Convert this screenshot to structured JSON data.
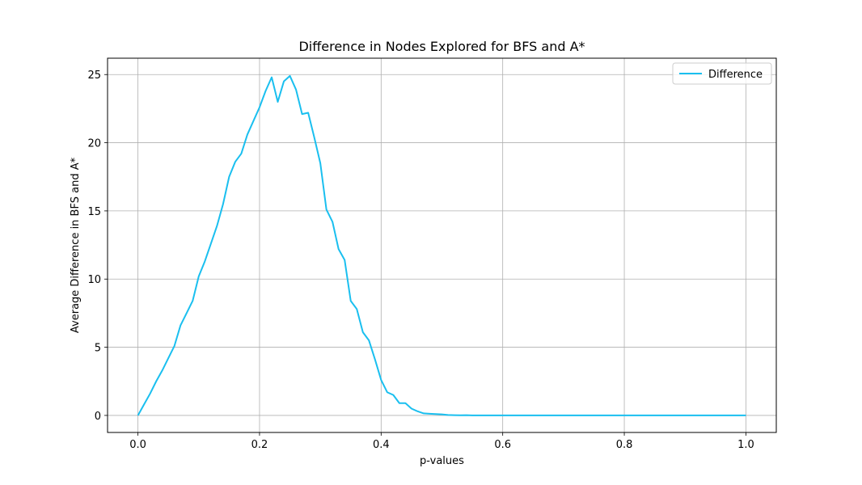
{
  "chart_data": {
    "type": "line",
    "title": "Difference in Nodes Explored for BFS and A*",
    "xlabel": "p-values",
    "ylabel": "Average Difference in BFS and A*",
    "xlim": [
      -0.05,
      1.05
    ],
    "ylim": [
      -1.25,
      26.2
    ],
    "xticks": [
      0.0,
      0.2,
      0.4,
      0.6,
      0.8,
      1.0
    ],
    "xtick_labels": [
      "0.0",
      "0.2",
      "0.4",
      "0.6",
      "0.8",
      "1.0"
    ],
    "yticks": [
      0,
      5,
      10,
      15,
      20,
      25
    ],
    "ytick_labels": [
      "0",
      "5",
      "10",
      "15",
      "20",
      "25"
    ],
    "grid": true,
    "legend_position": "top-right",
    "series": [
      {
        "name": "Difference",
        "color": "#1ABFEF",
        "x": [
          0.0,
          0.01,
          0.02,
          0.03,
          0.04,
          0.05,
          0.06,
          0.07,
          0.08,
          0.09,
          0.1,
          0.11,
          0.12,
          0.13,
          0.14,
          0.15,
          0.16,
          0.17,
          0.18,
          0.19,
          0.2,
          0.21,
          0.22,
          0.23,
          0.24,
          0.25,
          0.26,
          0.27,
          0.28,
          0.29,
          0.3,
          0.31,
          0.32,
          0.33,
          0.34,
          0.35,
          0.36,
          0.37,
          0.38,
          0.39,
          0.4,
          0.41,
          0.42,
          0.43,
          0.44,
          0.45,
          0.46,
          0.47,
          0.48,
          0.49,
          0.5,
          0.51,
          0.52,
          0.53,
          0.54,
          0.55,
          0.6,
          0.65,
          0.7,
          0.75,
          0.8,
          0.85,
          0.9,
          0.95,
          1.0
        ],
        "values": [
          0.0,
          0.8,
          1.6,
          2.5,
          3.3,
          4.2,
          5.1,
          6.6,
          7.5,
          8.4,
          10.2,
          11.3,
          12.6,
          13.9,
          15.5,
          17.5,
          18.6,
          19.2,
          20.6,
          21.6,
          22.6,
          23.8,
          24.8,
          23.0,
          24.5,
          24.9,
          23.9,
          22.1,
          22.2,
          20.4,
          18.5,
          15.1,
          14.2,
          12.2,
          11.4,
          8.4,
          7.8,
          6.1,
          5.5,
          4.1,
          2.6,
          1.7,
          1.5,
          0.9,
          0.9,
          0.5,
          0.3,
          0.15,
          0.12,
          0.1,
          0.08,
          0.03,
          0.02,
          0.01,
          0.02,
          0.0,
          0.0,
          0.0,
          0.0,
          0.0,
          0.0,
          0.0,
          0.0,
          0.0,
          0.0
        ]
      }
    ]
  }
}
